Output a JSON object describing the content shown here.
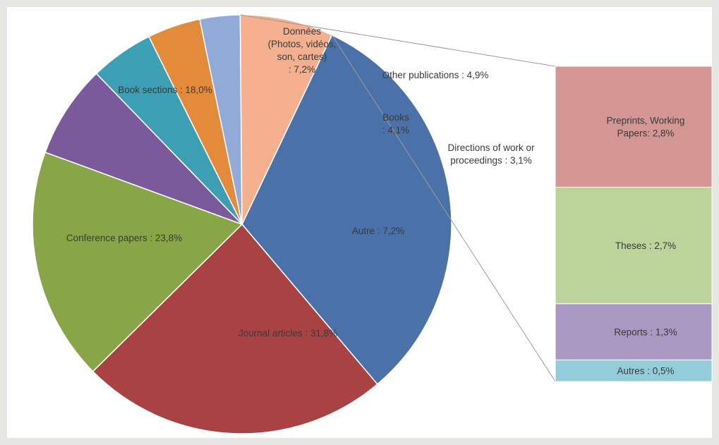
{
  "chart_data": [
    {
      "type": "pie",
      "title": "",
      "slices": [
        {
          "label": "Journal articles : 31,8%",
          "value": 31.8,
          "color": "#4a72a9"
        },
        {
          "label": "Conference papers :  23,8%",
          "value": 23.8,
          "color": "#a94343"
        },
        {
          "label": "Book sections : 18,0%",
          "value": 18.0,
          "color": "#88a648"
        },
        {
          "label_lines": [
            "Données",
            "(Photos, vidéos,",
            "son, cartes)",
            ": 7,2%"
          ],
          "value": 7.2,
          "color": "#7a5a9b"
        },
        {
          "label": "Other publications : 4,9%",
          "value": 4.9,
          "color": "#3c9fb4"
        },
        {
          "label_lines": [
            "Books",
            ": 4,1%"
          ],
          "value": 4.1,
          "color": "#e48a3b"
        },
        {
          "label_lines": [
            "Directions of work or",
            "proceedings : 3,1%"
          ],
          "value": 3.1,
          "color": "#92aad8"
        },
        {
          "label": "Autre : 7,2%",
          "value": 7.2,
          "color": "#f4b08e"
        }
      ]
    },
    {
      "type": "bar",
      "stacked": true,
      "breakdown_of": "Autre : 7,2%",
      "segments": [
        {
          "label_lines": [
            "Preprints, Working",
            "Papers: 2,8%"
          ],
          "value": 2.8,
          "color": "#d49693"
        },
        {
          "label": "Theses : 2,7%",
          "value": 2.7,
          "color": "#bcd39a"
        },
        {
          "label": "Reports : 1,3%",
          "value": 1.3,
          "color": "#a898c2"
        },
        {
          "label": "Autres : 0,5%",
          "value": 0.5,
          "color": "#93cdd9"
        }
      ]
    }
  ]
}
